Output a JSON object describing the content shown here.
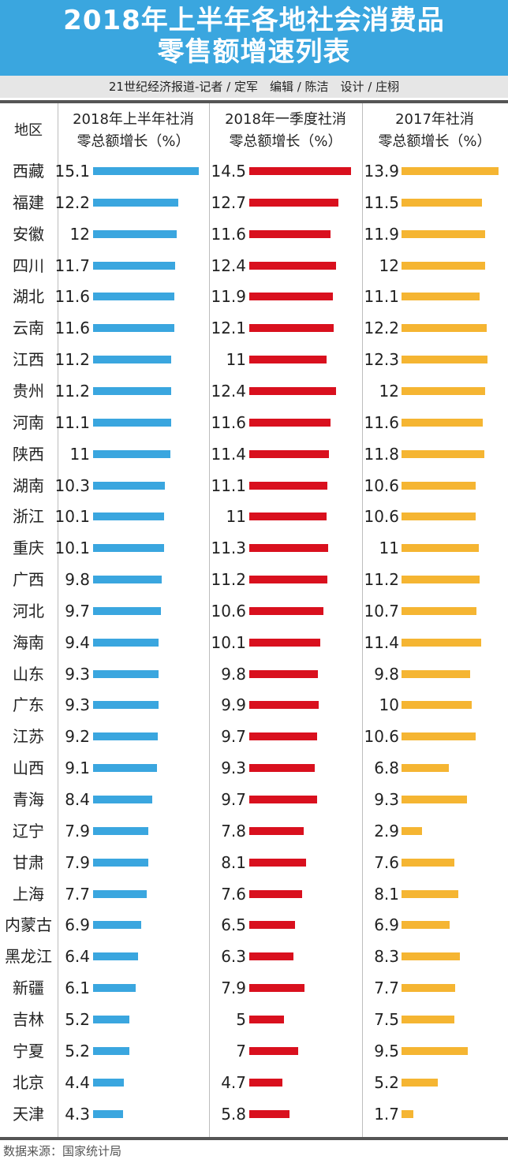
{
  "header": {
    "title_line1": "2018年上半年各地社会消费品",
    "title_line2": "零售额增速列表",
    "byline": "21世纪经济报道-记者 / 定军　编辑 / 陈洁　设计 / 庄栩"
  },
  "columns": {
    "region": "地区",
    "h1_line1": "2018年上半年社消",
    "h1_line2": "零总额增长（%）",
    "q1_line1": "2018年一季度社消",
    "q1_line2": "零总额增长（%）",
    "y2017_line1": "2017年社消",
    "y2017_line2": "零总额增长（%）"
  },
  "colors": {
    "h1": "#3aa6df",
    "q1": "#d9101e",
    "y2017": "#f5b532",
    "banner": "#3aa6df"
  },
  "footer": {
    "source": "数据来源：国家统计局"
  },
  "chart_data": {
    "type": "bar",
    "orientation": "horizontal",
    "title": "2018年上半年各地社会消费品零售额增速列表",
    "categories": [
      "西藏",
      "福建",
      "安徽",
      "四川",
      "湖北",
      "云南",
      "江西",
      "贵州",
      "河南",
      "陕西",
      "湖南",
      "浙江",
      "重庆",
      "广西",
      "河北",
      "海南",
      "山东",
      "广东",
      "江苏",
      "山西",
      "青海",
      "辽宁",
      "甘肃",
      "上海",
      "内蒙古",
      "黑龙江",
      "新疆",
      "吉林",
      "宁夏",
      "北京",
      "天津"
    ],
    "series": [
      {
        "name": "2018年上半年社消零总额增长（%）",
        "values": [
          "15.1",
          "12.2",
          "12",
          "11.7",
          "11.6",
          "11.6",
          "11.2",
          "11.2",
          "11.1",
          "11",
          "10.3",
          "10.1",
          "10.1",
          "9.8",
          "9.7",
          "9.4",
          "9.3",
          "9.3",
          "9.2",
          "9.1",
          "8.4",
          "7.9",
          "7.9",
          "7.7",
          "6.9",
          "6.4",
          "6.1",
          "5.2",
          "5.2",
          "4.4",
          "4.3"
        ]
      },
      {
        "name": "2018年一季度社消零总额增长（%）",
        "values": [
          "14.5",
          "12.7",
          "11.6",
          "12.4",
          "11.9",
          "12.1",
          "11",
          "12.4",
          "11.6",
          "11.4",
          "11.1",
          "11",
          "11.3",
          "11.2",
          "10.6",
          "10.1",
          "9.8",
          "9.9",
          "9.7",
          "9.3",
          "9.7",
          "7.8",
          "8.1",
          "7.6",
          "6.5",
          "6.3",
          "7.9",
          "5",
          "7",
          "4.7",
          "5.8"
        ]
      },
      {
        "name": "2017年社消零总额增长（%）",
        "values": [
          "13.9",
          "11.5",
          "11.9",
          "12",
          "11.1",
          "12.2",
          "12.3",
          "12",
          "11.6",
          "11.8",
          "10.6",
          "10.6",
          "11",
          "11.2",
          "10.7",
          "11.4",
          "9.8",
          "10",
          "10.6",
          "6.8",
          "9.3",
          "2.9",
          "7.6",
          "8.1",
          "6.9",
          "8.3",
          "7.7",
          "7.5",
          "9.5",
          "5.2",
          "1.7"
        ]
      }
    ],
    "xlim": [
      0,
      15.1
    ],
    "grid": false,
    "data_labels": true
  }
}
